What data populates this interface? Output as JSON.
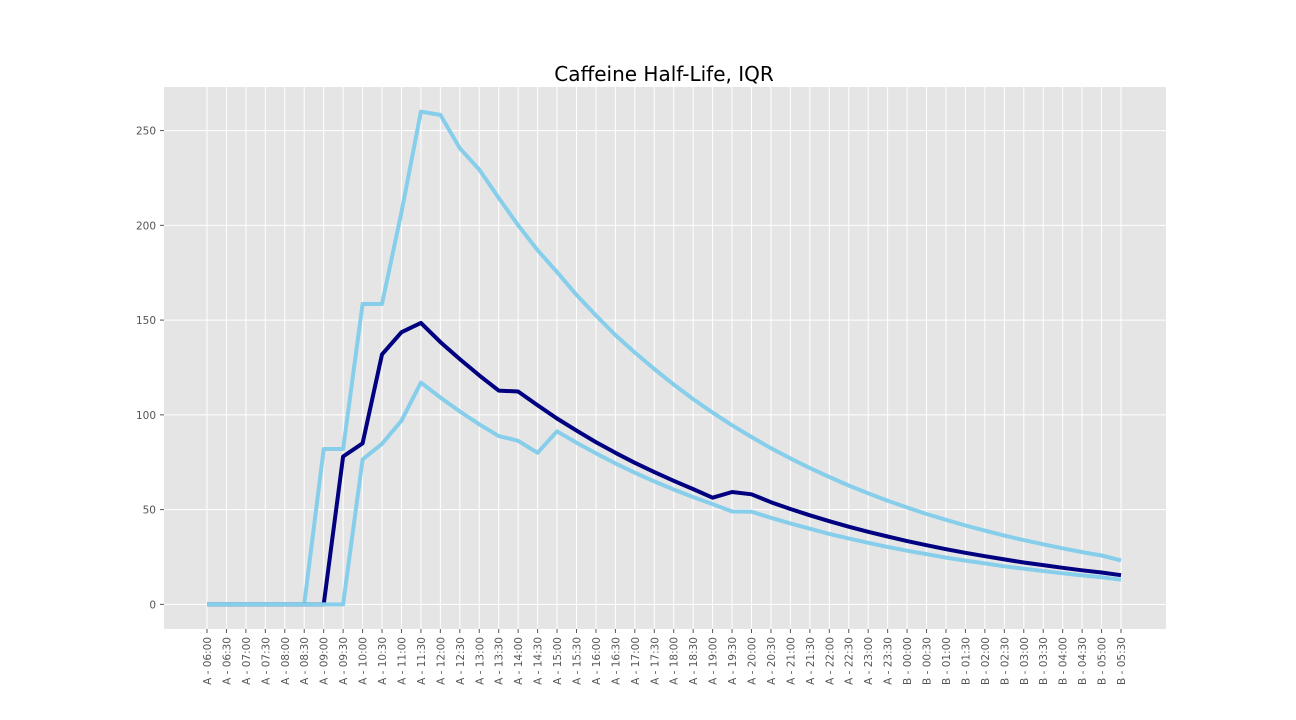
{
  "chart_data": {
    "type": "line",
    "title": "Caffeine Half-Life, IQR",
    "xlabel": "",
    "ylabel": "",
    "ylim": [
      -13,
      273
    ],
    "yticks": [
      0,
      50,
      100,
      150,
      200,
      250
    ],
    "grid": true,
    "legend": "none",
    "categories": [
      "A - 06:00",
      "A - 06:30",
      "A - 07:00",
      "A - 07:30",
      "A - 08:00",
      "A - 08:30",
      "A - 09:00",
      "A - 09:30",
      "A - 10:00",
      "A - 10:30",
      "A - 11:00",
      "A - 11:30",
      "A - 12:00",
      "A - 12:30",
      "A - 13:00",
      "A - 13:30",
      "A - 14:00",
      "A - 14:30",
      "A - 15:00",
      "A - 15:30",
      "A - 16:00",
      "A - 16:30",
      "A - 17:00",
      "A - 17:30",
      "A - 18:00",
      "A - 18:30",
      "A - 19:00",
      "A - 19:30",
      "A - 20:00",
      "A - 20:30",
      "A - 21:00",
      "A - 21:30",
      "A - 22:00",
      "A - 22:30",
      "A - 23:00",
      "A - 23:30",
      "B - 00:00",
      "B - 00:30",
      "B - 01:00",
      "B - 01:30",
      "B - 02:00",
      "B - 02:30",
      "B - 03:00",
      "B - 03:30",
      "B - 04:00",
      "B - 04:30",
      "B - 05:00",
      "B - 05:30"
    ],
    "series": [
      {
        "color": "#87CEEB",
        "values": [
          0,
          0,
          0,
          0,
          0,
          0,
          82,
          82,
          158.5,
          158.5,
          207,
          260,
          258.3,
          240.7,
          229.4,
          214.5,
          200.1,
          186.9,
          175.4,
          163.3,
          152.5,
          142.1,
          132.9,
          124.2,
          116.0,
          108.3,
          101.2,
          94.5,
          88.3,
          82.4,
          77.0,
          71.9,
          67.2,
          62.7,
          58.6,
          54.7,
          51.1,
          47.7,
          44.6,
          41.6,
          38.9,
          36.3,
          33.9,
          31.7,
          29.6,
          27.6,
          25.8,
          23.2
        ]
      },
      {
        "color": "#000080",
        "values": [
          0,
          0,
          0,
          0,
          0,
          0,
          0,
          78,
          85,
          131.9,
          143.6,
          148.5,
          138.4,
          129.4,
          120.8,
          112.8,
          112.3,
          105.1,
          98.1,
          91.7,
          85.6,
          80.0,
          74.7,
          69.8,
          65.2,
          60.8,
          56.3,
          59.3,
          58.1,
          53.9,
          50.3,
          47.0,
          43.9,
          41.0,
          38.3,
          35.8,
          33.4,
          31.2,
          29.1,
          27.2,
          25.4,
          23.7,
          22.1,
          20.7,
          19.3,
          18.0,
          16.8,
          15.4
        ]
      },
      {
        "color": "#87CEEB",
        "values": [
          0,
          0,
          0,
          0,
          0,
          0,
          0,
          0,
          76.5,
          84.7,
          96.9,
          117,
          109.1,
          101.8,
          95.0,
          88.8,
          86.3,
          80.0,
          91.3,
          85.3,
          79.7,
          74.4,
          69.5,
          64.9,
          60.6,
          56.6,
          52.9,
          49.0,
          48.9,
          45.7,
          42.7,
          39.9,
          37.2,
          34.8,
          32.5,
          30.3,
          28.3,
          26.5,
          24.7,
          23.1,
          21.6,
          20.1,
          18.8,
          17.6,
          16.4,
          15.3,
          14.3,
          13.0
        ]
      }
    ]
  }
}
